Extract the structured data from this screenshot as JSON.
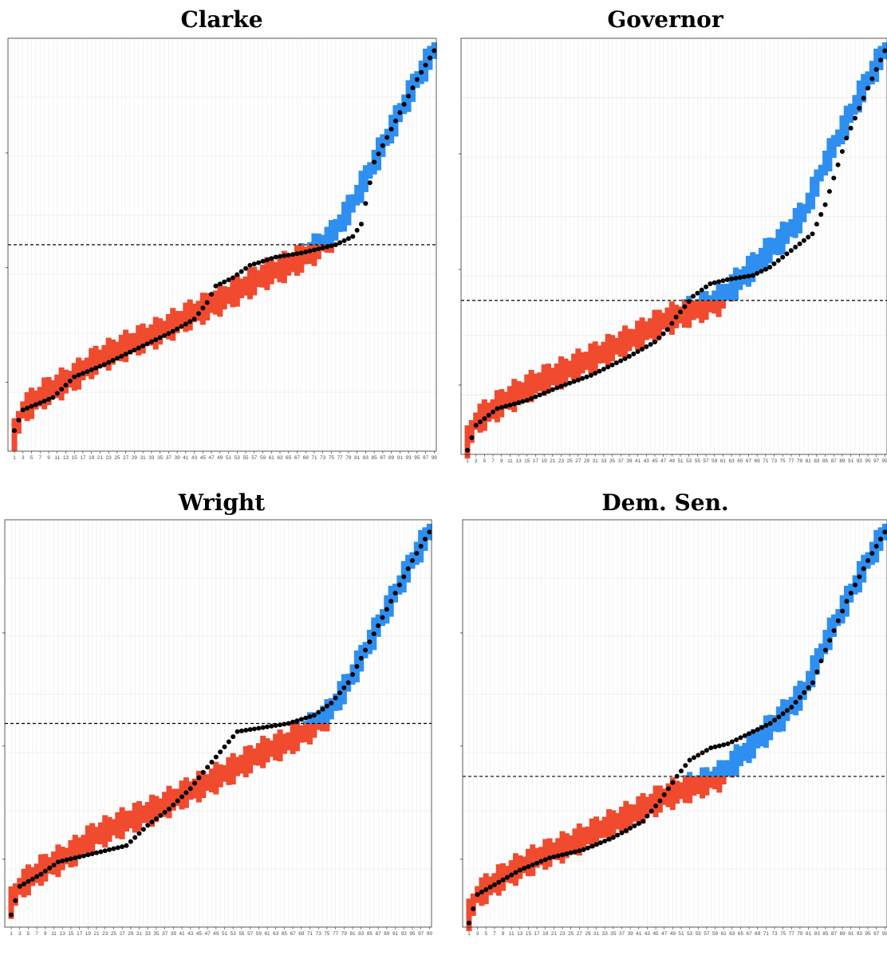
{
  "colors": {
    "red": "#f04a2f",
    "blue": "#2f8ff0",
    "point": "#000000",
    "grid": "#ebebeb",
    "frame": "#333333",
    "threshold_line": "#000000"
  },
  "chart_data": [
    {
      "type": "scatter",
      "title": "Clarke",
      "x_tick_labels": [
        "1",
        "3",
        "5",
        "7",
        "9",
        "11",
        "13",
        "15",
        "17",
        "19",
        "21",
        "23",
        "25",
        "27",
        "29",
        "31",
        "33",
        "35",
        "37",
        "39",
        "41",
        "43",
        "45",
        "47",
        "49",
        "51",
        "53",
        "55",
        "57",
        "59",
        "61",
        "63",
        "65",
        "67",
        "69",
        "71",
        "73",
        "75",
        "77",
        "79",
        "81",
        "83",
        "85",
        "87",
        "89",
        "91",
        "93",
        "95",
        "97",
        "99"
      ],
      "xlim": [
        0,
        100
      ],
      "ylim": [
        0,
        1
      ],
      "threshold": 0.5,
      "grid": true,
      "legend": "none",
      "anchors": [
        [
          1,
          0.04
        ],
        [
          3,
          0.1
        ],
        [
          8,
          0.14
        ],
        [
          15,
          0.18
        ],
        [
          20,
          0.22
        ],
        [
          28,
          0.26
        ],
        [
          35,
          0.29
        ],
        [
          42,
          0.33
        ],
        [
          48,
          0.36
        ],
        [
          55,
          0.4
        ],
        [
          60,
          0.43
        ],
        [
          65,
          0.45
        ],
        [
          70,
          0.48
        ],
        [
          75,
          0.52
        ],
        [
          80,
          0.6
        ],
        [
          85,
          0.7
        ],
        [
          90,
          0.8
        ],
        [
          95,
          0.9
        ],
        [
          99,
          0.97
        ]
      ],
      "actual_anchors": [
        [
          1,
          0.05
        ],
        [
          3,
          0.1
        ],
        [
          10,
          0.13
        ],
        [
          15,
          0.18
        ],
        [
          22,
          0.21
        ],
        [
          30,
          0.25
        ],
        [
          38,
          0.29
        ],
        [
          43,
          0.32
        ],
        [
          46,
          0.36
        ],
        [
          48,
          0.4
        ],
        [
          52,
          0.42
        ],
        [
          56,
          0.45
        ],
        [
          62,
          0.47
        ],
        [
          68,
          0.48
        ],
        [
          72,
          0.49
        ],
        [
          76,
          0.5
        ],
        [
          80,
          0.52
        ],
        [
          82,
          0.55
        ],
        [
          85,
          0.7
        ],
        [
          90,
          0.8
        ],
        [
          95,
          0.9
        ],
        [
          99,
          0.97
        ]
      ]
    },
    {
      "type": "scatter",
      "title": "Governor",
      "x_tick_labels": [
        "1",
        "3",
        "5",
        "7",
        "9",
        "11",
        "13",
        "15",
        "17",
        "19",
        "21",
        "23",
        "25",
        "27",
        "29",
        "31",
        "33",
        "35",
        "37",
        "39",
        "41",
        "43",
        "45",
        "47",
        "49",
        "51",
        "53",
        "55",
        "57",
        "59",
        "61",
        "63",
        "65",
        "67",
        "69",
        "71",
        "73",
        "75",
        "77",
        "79",
        "81",
        "83",
        "85",
        "87",
        "89",
        "91",
        "93",
        "95",
        "97",
        "99"
      ],
      "xlim": [
        0,
        100
      ],
      "ylim": [
        0,
        1
      ],
      "threshold": 0.37,
      "grid": true,
      "legend": "none",
      "anchors": [
        [
          1,
          0.03
        ],
        [
          3,
          0.08
        ],
        [
          10,
          0.13
        ],
        [
          17,
          0.17
        ],
        [
          24,
          0.2
        ],
        [
          32,
          0.24
        ],
        [
          40,
          0.28
        ],
        [
          47,
          0.32
        ],
        [
          55,
          0.35
        ],
        [
          60,
          0.37
        ],
        [
          65,
          0.42
        ],
        [
          70,
          0.47
        ],
        [
          75,
          0.52
        ],
        [
          80,
          0.58
        ],
        [
          85,
          0.7
        ],
        [
          90,
          0.8
        ],
        [
          95,
          0.9
        ],
        [
          99,
          0.97
        ]
      ],
      "actual_anchors": [
        [
          1,
          0.01
        ],
        [
          3,
          0.07
        ],
        [
          8,
          0.11
        ],
        [
          15,
          0.13
        ],
        [
          22,
          0.16
        ],
        [
          30,
          0.19
        ],
        [
          38,
          0.23
        ],
        [
          45,
          0.27
        ],
        [
          48,
          0.3
        ],
        [
          50,
          0.33
        ],
        [
          54,
          0.38
        ],
        [
          58,
          0.41
        ],
        [
          62,
          0.42
        ],
        [
          68,
          0.43
        ],
        [
          72,
          0.45
        ],
        [
          77,
          0.49
        ],
        [
          82,
          0.53
        ],
        [
          85,
          0.6
        ],
        [
          90,
          0.76
        ],
        [
          95,
          0.88
        ],
        [
          99,
          0.97
        ]
      ]
    },
    {
      "type": "scatter",
      "title": "Wright",
      "x_tick_labels": [
        "1",
        "3",
        "5",
        "7",
        "9",
        "11",
        "13",
        "15",
        "17",
        "19",
        "21",
        "23",
        "25",
        "27",
        "29",
        "31",
        "33",
        "35",
        "37",
        "39",
        "41",
        "43",
        "45",
        "47",
        "49",
        "51",
        "53",
        "55",
        "57",
        "59",
        "61",
        "63",
        "65",
        "67",
        "69",
        "71",
        "73",
        "75",
        "77",
        "79",
        "81",
        "83",
        "85",
        "87",
        "89",
        "91",
        "93",
        "95",
        "97",
        "99"
      ],
      "xlim": [
        0,
        100
      ],
      "ylim": [
        0,
        1
      ],
      "threshold": 0.5,
      "grid": true,
      "legend": "none",
      "anchors": [
        [
          1,
          0.06
        ],
        [
          3,
          0.1
        ],
        [
          8,
          0.14
        ],
        [
          15,
          0.18
        ],
        [
          20,
          0.22
        ],
        [
          28,
          0.26
        ],
        [
          35,
          0.29
        ],
        [
          42,
          0.33
        ],
        [
          48,
          0.36
        ],
        [
          55,
          0.4
        ],
        [
          60,
          0.43
        ],
        [
          65,
          0.45
        ],
        [
          70,
          0.48
        ],
        [
          75,
          0.52
        ],
        [
          80,
          0.6
        ],
        [
          85,
          0.7
        ],
        [
          90,
          0.8
        ],
        [
          95,
          0.9
        ],
        [
          99,
          0.97
        ]
      ],
      "actual_anchors": [
        [
          1,
          0.03
        ],
        [
          3,
          0.1
        ],
        [
          8,
          0.13
        ],
        [
          12,
          0.16
        ],
        [
          20,
          0.18
        ],
        [
          28,
          0.2
        ],
        [
          33,
          0.25
        ],
        [
          38,
          0.29
        ],
        [
          43,
          0.34
        ],
        [
          46,
          0.38
        ],
        [
          50,
          0.43
        ],
        [
          54,
          0.48
        ],
        [
          60,
          0.49
        ],
        [
          66,
          0.5
        ],
        [
          72,
          0.52
        ],
        [
          76,
          0.55
        ],
        [
          80,
          0.6
        ],
        [
          85,
          0.7
        ],
        [
          90,
          0.8
        ],
        [
          95,
          0.9
        ],
        [
          99,
          0.97
        ]
      ]
    },
    {
      "type": "scatter",
      "title": "Dem. Sen.",
      "x_tick_labels": [
        "1",
        "3",
        "5",
        "7",
        "9",
        "11",
        "13",
        "15",
        "17",
        "19",
        "21",
        "23",
        "25",
        "27",
        "29",
        "31",
        "33",
        "35",
        "37",
        "39",
        "41",
        "43",
        "45",
        "47",
        "49",
        "51",
        "53",
        "55",
        "57",
        "59",
        "61",
        "63",
        "65",
        "67",
        "69",
        "71",
        "73",
        "75",
        "77",
        "79",
        "81",
        "83",
        "85",
        "87",
        "89",
        "91",
        "93",
        "95",
        "97",
        "99"
      ],
      "xlim": [
        0,
        100
      ],
      "ylim": [
        0,
        1
      ],
      "threshold": 0.37,
      "grid": true,
      "legend": "none",
      "anchors": [
        [
          1,
          0.03
        ],
        [
          3,
          0.08
        ],
        [
          10,
          0.13
        ],
        [
          17,
          0.17
        ],
        [
          24,
          0.2
        ],
        [
          32,
          0.24
        ],
        [
          40,
          0.28
        ],
        [
          47,
          0.32
        ],
        [
          55,
          0.35
        ],
        [
          60,
          0.37
        ],
        [
          65,
          0.42
        ],
        [
          70,
          0.47
        ],
        [
          75,
          0.52
        ],
        [
          80,
          0.58
        ],
        [
          85,
          0.7
        ],
        [
          90,
          0.8
        ],
        [
          95,
          0.9
        ],
        [
          99,
          0.97
        ]
      ],
      "actual_anchors": [
        [
          1,
          0.01
        ],
        [
          3,
          0.08
        ],
        [
          8,
          0.11
        ],
        [
          13,
          0.14
        ],
        [
          20,
          0.17
        ],
        [
          28,
          0.19
        ],
        [
          35,
          0.22
        ],
        [
          42,
          0.26
        ],
        [
          46,
          0.31
        ],
        [
          50,
          0.37
        ],
        [
          53,
          0.41
        ],
        [
          58,
          0.44
        ],
        [
          62,
          0.45
        ],
        [
          68,
          0.48
        ],
        [
          72,
          0.5
        ],
        [
          77,
          0.54
        ],
        [
          82,
          0.6
        ],
        [
          85,
          0.68
        ],
        [
          90,
          0.8
        ],
        [
          95,
          0.9
        ],
        [
          99,
          0.97
        ]
      ]
    }
  ]
}
